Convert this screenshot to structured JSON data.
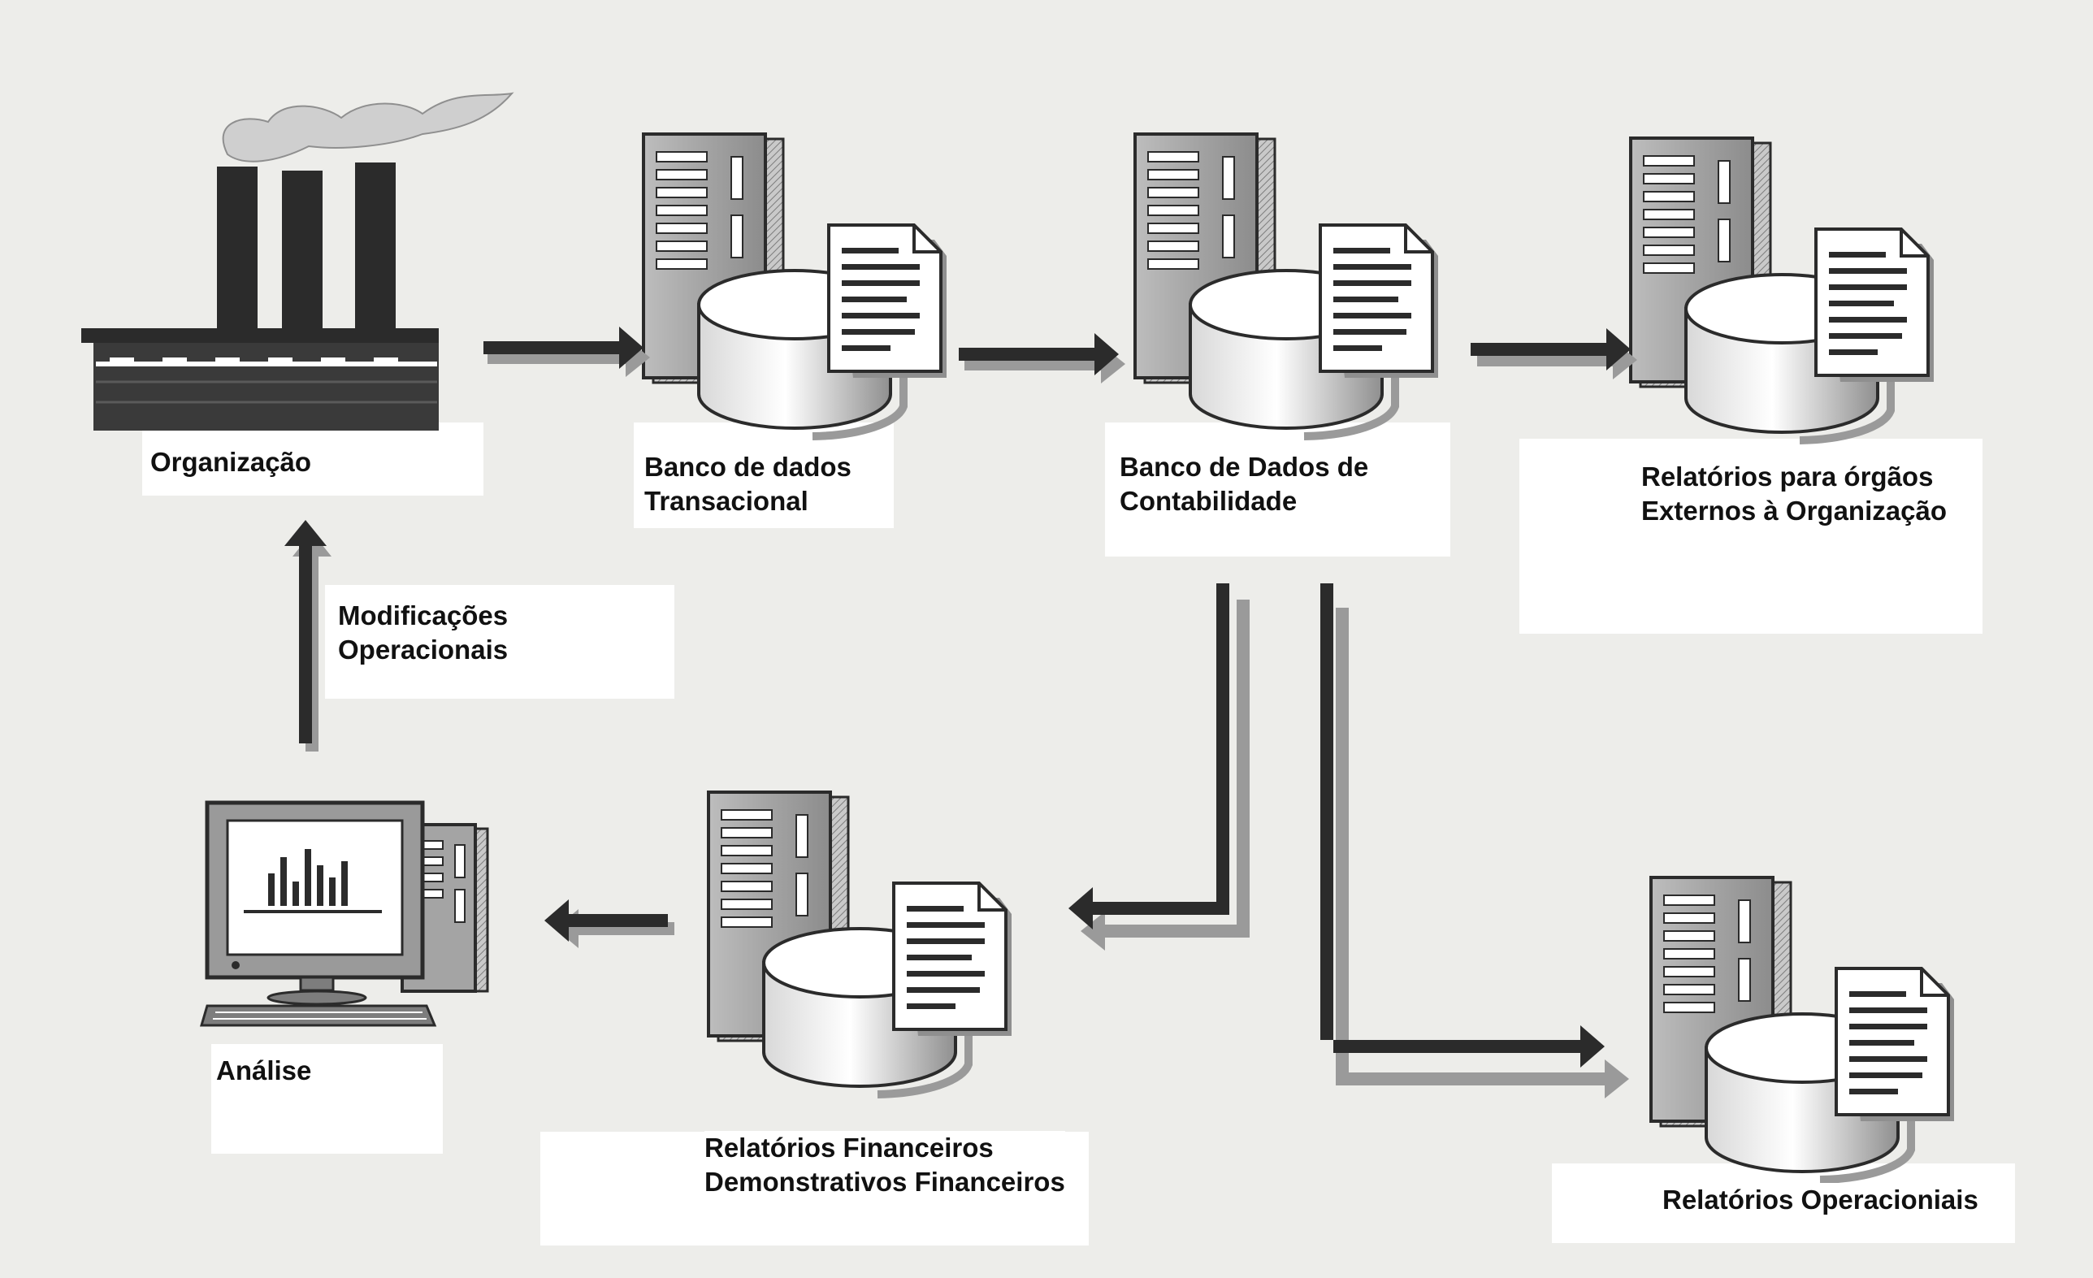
{
  "nodes": {
    "organizacao": {
      "label": "Organização",
      "icon": "factory-icon"
    },
    "banco_transacional": {
      "line1": "Banco de dados",
      "line2": "Transacional",
      "icon": "database-server-icon"
    },
    "banco_contabilidade": {
      "line1": "Banco de Dados de",
      "line2": "Contabilidade",
      "icon": "database-server-icon"
    },
    "relatorios_externos": {
      "line1": "Relatórios para órgãos",
      "line2": "Externos à Organização",
      "icon": "database-server-icon"
    },
    "relatorios_financeiros": {
      "line1": "Relatórios Financeiros",
      "line2": "Demonstrativos Financeiros",
      "icon": "database-server-icon"
    },
    "relatorios_operacionais": {
      "label": "Relatórios Operacioniais",
      "icon": "database-server-icon"
    },
    "analise": {
      "label": "Análise",
      "icon": "computer-chart-icon"
    }
  },
  "edges": {
    "modificacoes": {
      "line1": "Modificações",
      "line2": "Operacionais"
    }
  },
  "colors": {
    "background": "#ededea",
    "ink": "#2b2b2b",
    "shadow": "#9a9a9a",
    "server_fill": "#a9a9a9",
    "label_box": "#ffffff"
  }
}
